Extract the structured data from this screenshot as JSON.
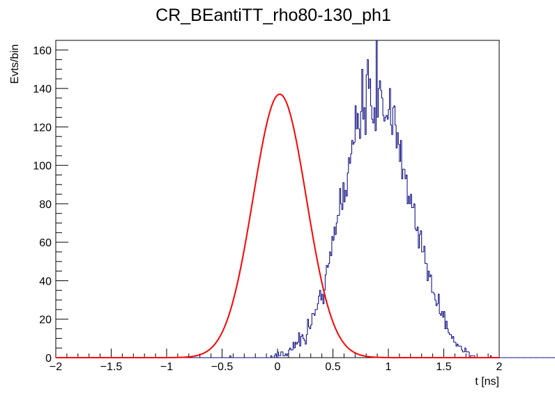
{
  "chart_data": {
    "type": "line",
    "title": "CR_BEantiTT_rho80-130_ph1",
    "xlabel": "t [ns]",
    "ylabel": "Evts/bin",
    "xlim": [
      -2,
      2
    ],
    "ylim": [
      0,
      165
    ],
    "x_ticks": [
      -2,
      -1.5,
      -1,
      -0.5,
      0,
      0.5,
      1,
      1.5,
      2
    ],
    "x_tick_labels": [
      "−2",
      "−1.5",
      "−1",
      "−0.5",
      "0",
      "0.5",
      "1",
      "1.5",
      "2"
    ],
    "y_ticks": [
      0,
      20,
      40,
      60,
      80,
      100,
      120,
      140,
      160
    ],
    "y_tick_labels": [
      "0",
      "20",
      "40",
      "60",
      "80",
      "100",
      "120",
      "140",
      "160"
    ],
    "grid": false,
    "colors": {
      "histogram": "#000080",
      "fit": "#ff0000"
    },
    "series": [
      {
        "kind": "histogram",
        "bin_width": 0.01,
        "x_start": -2,
        "counts": [
          0,
          0,
          0,
          0,
          0,
          0,
          0,
          0,
          0,
          0,
          0,
          0,
          0,
          0,
          0,
          0,
          0,
          0,
          0,
          0,
          0,
          0,
          0,
          0,
          0,
          0,
          0,
          0,
          0,
          0,
          0,
          0,
          0,
          0,
          0,
          0,
          0,
          0,
          0,
          0,
          0,
          0,
          0,
          0,
          0,
          0,
          0,
          0,
          0,
          0,
          0,
          0,
          0,
          0,
          0,
          0,
          0,
          0,
          0,
          0,
          0,
          0,
          0,
          0,
          0,
          0,
          0,
          0,
          0,
          0,
          0,
          0,
          0,
          0,
          0,
          0,
          0,
          0,
          0,
          0,
          0,
          0,
          0,
          0,
          0,
          0,
          0,
          0,
          0,
          0,
          0,
          0,
          0,
          0,
          0,
          0,
          0,
          0,
          0,
          0,
          0,
          0,
          0,
          0,
          0,
          0,
          0,
          0,
          0,
          0,
          0,
          0,
          0,
          0,
          0,
          0,
          0,
          0,
          0,
          0,
          0,
          0,
          0,
          0,
          0,
          0,
          0,
          0,
          0,
          0,
          0,
          0,
          0,
          0,
          0,
          0,
          0,
          0,
          0,
          0,
          0,
          0,
          0,
          0,
          0,
          0,
          0,
          0,
          0,
          0,
          0,
          0,
          0,
          0,
          0,
          0,
          0,
          1,
          0,
          0,
          0,
          0,
          0,
          0,
          0,
          0,
          0,
          0,
          0,
          0,
          0,
          0,
          0,
          0,
          0,
          0,
          0,
          0,
          0,
          0,
          0,
          0,
          0,
          0,
          0,
          0,
          0,
          0,
          0,
          0,
          0,
          0,
          0,
          0,
          1,
          0,
          0,
          1,
          2,
          0,
          3,
          1,
          1,
          3,
          3,
          1,
          1,
          2,
          1,
          2,
          4,
          5,
          4,
          4,
          8,
          5,
          8,
          7,
          8,
          13,
          6,
          11,
          12,
          10,
          9,
          7,
          12,
          20,
          16,
          15,
          17,
          23,
          23,
          22,
          25,
          25,
          28,
          32,
          35,
          30,
          33,
          28,
          35,
          43,
          48,
          47,
          49,
          55,
          53,
          63,
          61,
          68,
          64,
          70,
          74,
          74,
          88,
          80,
          77,
          91,
          81,
          87,
          84,
          96,
          104,
          101,
          106,
          113,
          111,
          112,
          131,
          119,
          127,
          119,
          114,
          128,
          150,
          124,
          130,
          116,
          147,
          155,
          140,
          145,
          131,
          124,
          122,
          130,
          118,
          165,
          125,
          140,
          144,
          139,
          135,
          126,
          123,
          125,
          126,
          124,
          129,
          140,
          121,
          116,
          130,
          131,
          121,
          109,
          117,
          111,
          102,
          113,
          93,
          98,
          98,
          93,
          95,
          80,
          84,
          80,
          85,
          78,
          78,
          80,
          67,
          66,
          68,
          57,
          64,
          66,
          55,
          55,
          58,
          49,
          49,
          40,
          45,
          42,
          43,
          34,
          34,
          33,
          30,
          27,
          28,
          33,
          23,
          22,
          24,
          21,
          24,
          15,
          19,
          15,
          13,
          12,
          12,
          10,
          11,
          8,
          8,
          6,
          7,
          6,
          6,
          6,
          4,
          3,
          3,
          5,
          3,
          3,
          3,
          0,
          1,
          1,
          1,
          1,
          0,
          0,
          0,
          0,
          0,
          0,
          0,
          0,
          0,
          0,
          0,
          0,
          0,
          0,
          1,
          0,
          0,
          0,
          0,
          0,
          0,
          0,
          0,
          0,
          0,
          0,
          0,
          0,
          0,
          0,
          0,
          0,
          0,
          0,
          0,
          0,
          0,
          0,
          0,
          0,
          0,
          0,
          0,
          0,
          0,
          0,
          0,
          0,
          0,
          0,
          0,
          0,
          0,
          0,
          0,
          0,
          0,
          0,
          0,
          0,
          0,
          0,
          0,
          0,
          0,
          0,
          0,
          0,
          0,
          0,
          0,
          0,
          0,
          0,
          0,
          0,
          0,
          0,
          0,
          0,
          0,
          0,
          0,
          0,
          0,
          0,
          0,
          0,
          0,
          0,
          0,
          0,
          0,
          0,
          0,
          0,
          0,
          0,
          0,
          0,
          0,
          0,
          0,
          0,
          0,
          0,
          0,
          0,
          0,
          0,
          0,
          0,
          0,
          0,
          0,
          0,
          0,
          0,
          0,
          0,
          0,
          0,
          0,
          0,
          0,
          0,
          0,
          0,
          0,
          0,
          0,
          0,
          0,
          0,
          0,
          0
        ]
      },
      {
        "kind": "fit",
        "function": "gaussian",
        "amplitude": 137,
        "mean": 0.02,
        "sigma": 0.24
      }
    ]
  }
}
